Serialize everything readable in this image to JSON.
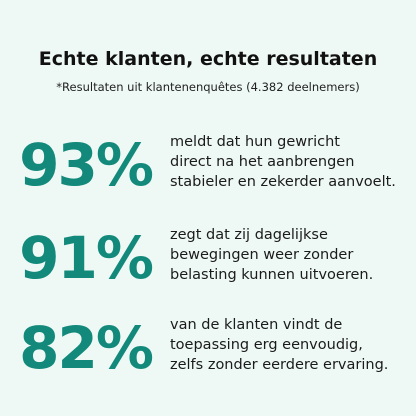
{
  "header": {
    "title": "Echte klanten, echte resultaten",
    "subtitle": "*Resultaten uit klantenenquêtes (4.382 deelnemers)"
  },
  "stats": [
    {
      "value": "93%",
      "lines": [
        "meldt dat hun gewricht",
        "direct na het aanbrengen",
        "stabieler en zekerder aanvoelt."
      ]
    },
    {
      "value": "91%",
      "lines": [
        "zegt dat zij dagelijkse",
        "bewegingen weer zonder",
        "belasting kunnen uitvoeren."
      ]
    },
    {
      "value": "82%",
      "lines": [
        "van de klanten vindt de",
        "toepassing erg eenvoudig,",
        "zelfs zonder eerdere ervaring."
      ]
    }
  ]
}
